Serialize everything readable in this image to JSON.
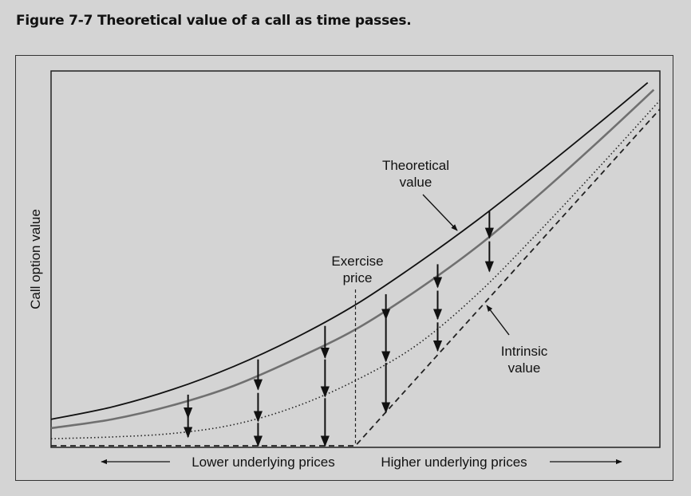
{
  "figure_title": "Figure 7-7  Theoretical value of a call as time passes.",
  "colors": {
    "background": "#d4d4d4",
    "theoretical": "#111111",
    "intermediate": "#707070",
    "dotted": "#222222",
    "intrinsic": "#222222"
  },
  "chart_data": {
    "type": "line",
    "title": "Figure 7-7  Theoretical value of a call as time passes.",
    "ylabel": "Call option value",
    "xlabel_left": "Lower underlying prices",
    "xlabel_right": "Higher underlying prices",
    "axis_ticks": "none",
    "xlim": [
      0,
      100
    ],
    "ylim": [
      0,
      100
    ],
    "exercise_price": 50,
    "annotations": {
      "theoretical": "Theoretical\nvalue",
      "exercise": "Exercise\nprice",
      "intrinsic": "Intrinsic\nvalue"
    },
    "annotation_lines": {
      "theoretical": [
        "Theoretical",
        "value"
      ],
      "exercise": [
        "Exercise",
        "price"
      ],
      "intrinsic": [
        "Intrinsic",
        "value"
      ]
    },
    "series": [
      {
        "name": "Theoretical value",
        "style": "solid-black",
        "x": [
          0,
          10,
          20,
          30,
          40,
          50,
          60,
          70,
          80,
          90,
          98
        ],
        "y": [
          7.5,
          11,
          16,
          22.5,
          30.5,
          40,
          51.5,
          64,
          77.5,
          91.5,
          103
        ]
      },
      {
        "style": "solid-gray",
        "x": [
          0,
          10,
          20,
          30,
          40,
          50,
          60,
          70,
          80,
          90,
          99
        ],
        "y": [
          5,
          7.5,
          11.5,
          17,
          24.5,
          33,
          44,
          56.5,
          71,
          86.5,
          101
        ]
      },
      {
        "style": "dotted",
        "x": [
          0,
          10,
          20,
          30,
          40,
          50,
          60,
          70,
          80,
          90,
          100
        ],
        "y": [
          2,
          2.5,
          3.5,
          6,
          11,
          18.5,
          28.5,
          43,
          60.5,
          79,
          98
        ]
      },
      {
        "name": "Intrinsic value",
        "style": "dashed",
        "x": [
          0,
          50,
          100
        ],
        "y": [
          0,
          0,
          95.5
        ]
      }
    ],
    "arrows": [
      {
        "x": 22.5,
        "y_from": 14.5,
        "y_to": 8
      },
      {
        "x": 22.5,
        "y_from": 8.5,
        "y_to": 2.5
      },
      {
        "x": 34,
        "y_from": 24.5,
        "y_to": 16
      },
      {
        "x": 34,
        "y_from": 15,
        "y_to": 7
      },
      {
        "x": 34,
        "y_from": 6.5,
        "y_to": 0
      },
      {
        "x": 45,
        "y_from": 34,
        "y_to": 25
      },
      {
        "x": 45,
        "y_from": 24.5,
        "y_to": 14
      },
      {
        "x": 45,
        "y_from": 13.5,
        "y_to": 0
      },
      {
        "x": 55,
        "y_from": 43,
        "y_to": 36
      },
      {
        "x": 55,
        "y_from": 36,
        "y_to": 24
      },
      {
        "x": 55,
        "y_from": 23.5,
        "y_to": 9.5
      },
      {
        "x": 63.5,
        "y_from": 51.5,
        "y_to": 45
      },
      {
        "x": 63.5,
        "y_from": 44,
        "y_to": 36
      },
      {
        "x": 63.5,
        "y_from": 35,
        "y_to": 27
      },
      {
        "x": 72,
        "y_from": 66.5,
        "y_to": 59
      },
      {
        "x": 72,
        "y_from": 58,
        "y_to": 49.5
      }
    ]
  }
}
